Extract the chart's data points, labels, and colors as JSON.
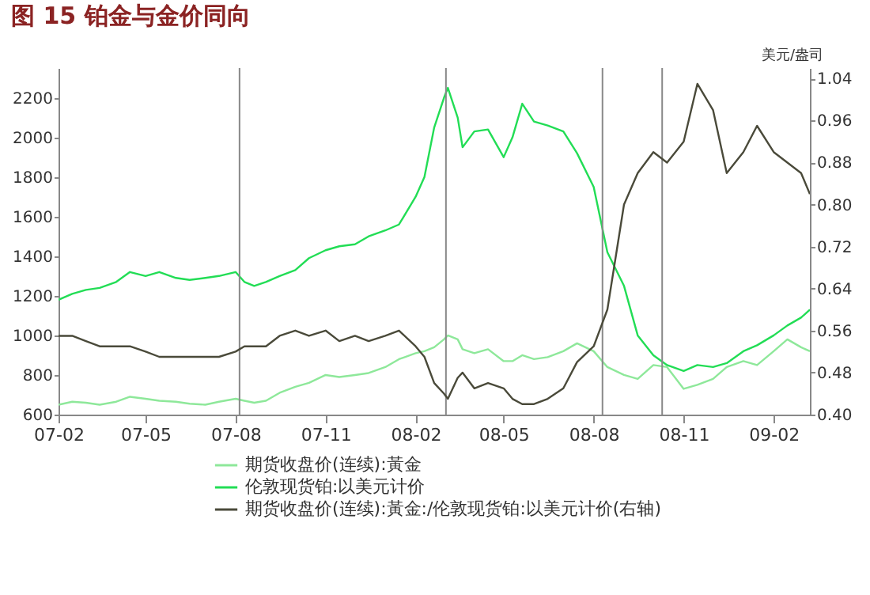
{
  "chart_data": {
    "type": "line",
    "title": "图 15  铂金与金价同向",
    "y2label": "美元/盎司",
    "x": [
      "2007-02-01",
      "2007-02-15",
      "2007-03-01",
      "2007-03-15",
      "2007-04-01",
      "2007-04-15",
      "2007-05-01",
      "2007-05-15",
      "2007-06-01",
      "2007-06-15",
      "2007-07-01",
      "2007-07-15",
      "2007-08-01",
      "2007-08-10",
      "2007-08-20",
      "2007-09-01",
      "2007-09-15",
      "2007-10-01",
      "2007-10-15",
      "2007-11-01",
      "2007-11-15",
      "2007-12-01",
      "2007-12-15",
      "2008-01-01",
      "2008-01-15",
      "2008-02-01",
      "2008-02-10",
      "2008-02-20",
      "2008-03-01",
      "2008-03-05",
      "2008-03-15",
      "2008-03-20",
      "2008-04-01",
      "2008-04-15",
      "2008-05-01",
      "2008-05-10",
      "2008-05-20",
      "2008-06-01",
      "2008-06-15",
      "2008-07-01",
      "2008-07-15",
      "2008-08-01",
      "2008-08-15",
      "2008-09-01",
      "2008-09-15",
      "2008-10-01",
      "2008-10-15",
      "2008-11-01",
      "2008-11-15",
      "2008-12-01",
      "2008-12-15",
      "2009-01-01",
      "2009-01-15",
      "2009-02-01",
      "2009-02-15",
      "2009-03-01",
      "2009-03-10"
    ],
    "series": [
      {
        "name": "期货收盘价(连续):黃金",
        "color": "#8ee89a",
        "values": [
          650,
          665,
          660,
          650,
          665,
          690,
          680,
          670,
          665,
          655,
          650,
          665,
          680,
          670,
          660,
          670,
          710,
          740,
          760,
          800,
          790,
          800,
          810,
          840,
          880,
          910,
          920,
          940,
          980,
          1000,
          980,
          930,
          910,
          930,
          870,
          870,
          900,
          880,
          890,
          920,
          960,
          920,
          840,
          800,
          780,
          850,
          840,
          730,
          750,
          780,
          840,
          870,
          850,
          920,
          980,
          940,
          920
        ]
      },
      {
        "name": "伦敦现货铂:以美元计价",
        "color": "#22dd55",
        "values": [
          1180,
          1210,
          1230,
          1240,
          1270,
          1320,
          1300,
          1320,
          1290,
          1280,
          1290,
          1300,
          1320,
          1270,
          1250,
          1270,
          1300,
          1330,
          1390,
          1430,
          1450,
          1460,
          1500,
          1530,
          1560,
          1700,
          1800,
          2050,
          2200,
          2250,
          2100,
          1950,
          2030,
          2040,
          1900,
          2000,
          2170,
          2080,
          2060,
          2030,
          1920,
          1750,
          1420,
          1250,
          1000,
          900,
          850,
          820,
          850,
          840,
          860,
          920,
          950,
          1000,
          1050,
          1090,
          1130
        ]
      },
      {
        "name": "期货收盘价(连续):黃金:/伦敦现货铂:以美元计价(右轴)",
        "color": "#4a4a3a",
        "axis": "y2",
        "values": [
          0.55,
          0.55,
          0.54,
          0.53,
          0.53,
          0.53,
          0.52,
          0.51,
          0.51,
          0.51,
          0.51,
          0.51,
          0.52,
          0.53,
          0.53,
          0.53,
          0.55,
          0.56,
          0.55,
          0.56,
          0.54,
          0.55,
          0.54,
          0.55,
          0.56,
          0.53,
          0.51,
          0.46,
          0.44,
          0.43,
          0.47,
          0.48,
          0.45,
          0.46,
          0.45,
          0.43,
          0.42,
          0.42,
          0.43,
          0.45,
          0.5,
          0.53,
          0.6,
          0.8,
          0.86,
          0.9,
          0.88,
          0.92,
          1.03,
          0.98,
          0.86,
          0.9,
          0.95,
          0.9,
          0.88,
          0.86,
          0.82
        ]
      }
    ],
    "xlim": [
      "2007-02-01",
      "2009-03-10"
    ],
    "xticks": [
      {
        "value": "2007-02-01",
        "label": "07-02"
      },
      {
        "value": "2007-05-01",
        "label": "07-05"
      },
      {
        "value": "2007-08-01",
        "label": "07-08"
      },
      {
        "value": "2007-11-01",
        "label": "07-11"
      },
      {
        "value": "2008-02-01",
        "label": "08-02"
      },
      {
        "value": "2008-05-01",
        "label": "08-05"
      },
      {
        "value": "2008-08-01",
        "label": "08-08"
      },
      {
        "value": "2008-11-01",
        "label": "08-11"
      },
      {
        "value": "2009-02-01",
        "label": "09-02"
      }
    ],
    "ylim": [
      600,
      2350
    ],
    "yticks": [
      600,
      800,
      1000,
      1200,
      1400,
      1600,
      1800,
      2000,
      2200
    ],
    "y2lim": [
      0.4,
      1.06
    ],
    "y2ticks": [
      {
        "value": 0.4,
        "label": "0.40"
      },
      {
        "value": 0.48,
        "label": "0.48"
      },
      {
        "value": 0.56,
        "label": "0.56"
      },
      {
        "value": 0.64,
        "label": "0.64"
      },
      {
        "value": 0.72,
        "label": "0.72"
      },
      {
        "value": 0.8,
        "label": "0.80"
      },
      {
        "value": 0.88,
        "label": "0.88"
      },
      {
        "value": 0.96,
        "label": "0.96"
      },
      {
        "value": 1.04,
        "label": "1.04"
      }
    ],
    "ref_lines": [
      {
        "axis": "x",
        "value": "2007-08-05",
        "color": "#888888"
      },
      {
        "axis": "x",
        "value": "2008-03-03",
        "color": "#888888"
      },
      {
        "axis": "x",
        "value": "2008-08-10",
        "color": "#888888"
      },
      {
        "axis": "x",
        "value": "2008-10-10",
        "color": "#888888"
      }
    ],
    "legend": "bottom"
  }
}
